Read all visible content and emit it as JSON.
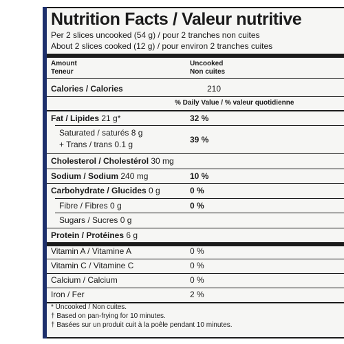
{
  "title": "Nutrition Facts / Valeur nutritive",
  "serving_uncooked": "Per 2 slices uncooked (54 g) / pour 2 tranches non cuites",
  "serving_cooked": "About 2 slices cooked (12 g) / pour environ 2 tranches cuites",
  "header": {
    "amount": "Amount",
    "teneur": "Teneur",
    "uncooked": "Uncooked",
    "non_cuites": "Non cuites"
  },
  "calories": {
    "label": "Calories / Calories",
    "value": "210"
  },
  "daily_value_header": "% Daily Value / % valeur quotidienne",
  "nutrients": {
    "fat": {
      "label": "Fat / Lipides",
      "amount": "21 g*",
      "dv": "32 %"
    },
    "saturated": {
      "label": "Saturated / saturés",
      "amount": "8 g"
    },
    "trans": {
      "label": "+ Trans / trans",
      "amount": "0.1 g",
      "dv": "39 %"
    },
    "cholesterol": {
      "label": "Cholesterol / Cholestérol",
      "amount": "30 mg"
    },
    "sodium": {
      "label": "Sodium / Sodium",
      "amount": "240 mg",
      "dv": "10 %"
    },
    "carbohydrate": {
      "label": "Carbohydrate / Glucides",
      "amount": "0 g",
      "dv": "0 %"
    },
    "fibre": {
      "label": "Fibre / Fibres",
      "amount": "0 g",
      "dv": "0 %"
    },
    "sugars": {
      "label": "Sugars / Sucres",
      "amount": "0 g"
    },
    "protein": {
      "label": "Protein / Protéines",
      "amount": "6 g"
    }
  },
  "vitamins": [
    {
      "label": "Vitamin A / Vitamine A",
      "dv": "0 %"
    },
    {
      "label": "Vitamin C / Vitamine C",
      "dv": "0 %"
    },
    {
      "label": "Calcium / Calcium",
      "dv": "0 %"
    },
    {
      "label": "Iron / Fer",
      "dv": "2 %"
    }
  ],
  "footnotes": [
    "* Uncooked / Non cuites.",
    "† Based on pan-frying for 10 minutes.",
    "† Basées sur un produit cuit à la poêle pendant 10 minutes."
  ],
  "colors": {
    "edge": "#1d2f6b",
    "background": "#f6f6f4",
    "ink": "#1b1b1b"
  }
}
